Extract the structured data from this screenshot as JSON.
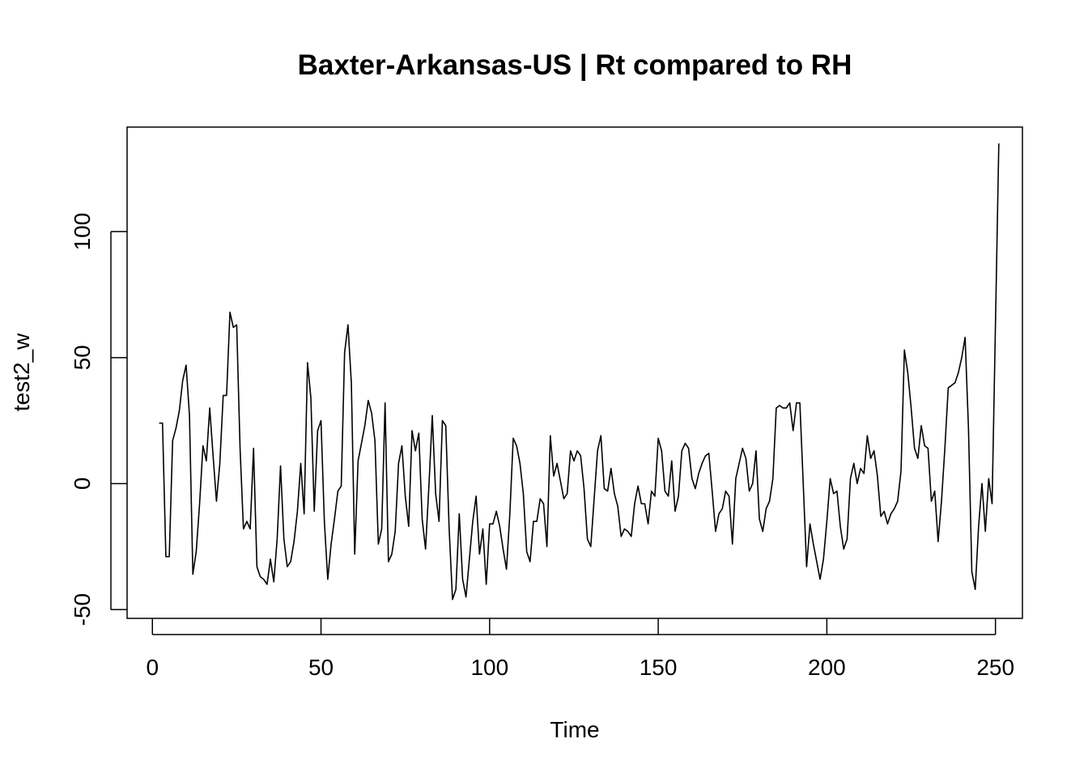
{
  "chart_data": {
    "type": "line",
    "title": "Baxter-Arkansas-US | Rt compared to RH",
    "xlabel": "Time",
    "ylabel": "test2_w",
    "xlim": [
      -7.5,
      258
    ],
    "ylim": [
      -53.5,
      141.5
    ],
    "x_ticks": [
      0,
      50,
      100,
      150,
      200,
      250
    ],
    "y_ticks": [
      -50,
      0,
      50,
      100
    ],
    "x_start": 2,
    "grid": false,
    "legend": "none",
    "series": [
      {
        "values": [
          24,
          24,
          -29,
          -29,
          17,
          22,
          29,
          41,
          47,
          27,
          -36,
          -27,
          -8,
          15,
          9,
          30,
          11,
          -7,
          8,
          35,
          35,
          68,
          62,
          63,
          14,
          -18,
          -15,
          -18,
          14,
          -33,
          -37,
          -38,
          -40,
          -30,
          -39,
          -22,
          7,
          -22,
          -33,
          -31,
          -23,
          -11,
          8,
          -12,
          48,
          34,
          -11,
          21,
          25,
          -15,
          -38,
          -24,
          -14,
          -3,
          -1,
          52,
          63,
          40,
          -28,
          9,
          16,
          23,
          33,
          28,
          17,
          -24,
          -18,
          32,
          -31,
          -28,
          -19,
          8,
          15,
          -5,
          -17,
          21,
          13,
          20,
          -14,
          -26,
          -1,
          27,
          -4,
          -15,
          25,
          23,
          -18,
          -46,
          -42,
          -12,
          -38,
          -45,
          -30,
          -15,
          -5,
          -28,
          -18,
          -40,
          -16,
          -16,
          -11,
          -17,
          -26,
          -34,
          -12,
          18,
          15,
          8,
          -4,
          -27,
          -31,
          -15,
          -15,
          -6,
          -8,
          -25,
          19,
          3,
          8,
          1,
          -6,
          -4,
          13,
          9,
          13,
          11,
          -2,
          -22,
          -25,
          -6,
          13,
          19,
          -2,
          -3,
          6,
          -4,
          -9,
          -21,
          -18,
          -19,
          -21,
          -8,
          -1,
          -8,
          -8,
          -16,
          -3,
          -5,
          18,
          13,
          -3,
          -5,
          9,
          -11,
          -5,
          13,
          16,
          14,
          2,
          -2,
          4,
          8,
          11,
          12,
          -3,
          -19,
          -12,
          -10,
          -3,
          -5,
          -24,
          2,
          8,
          14,
          10,
          -3,
          0,
          13,
          -14,
          -19,
          -10,
          -7,
          2,
          30,
          31,
          30,
          30,
          32,
          21,
          32,
          32,
          0,
          -33,
          -16,
          -24,
          -31,
          -38,
          -30,
          -15,
          2,
          -4,
          -3,
          -17,
          -26,
          -22,
          2,
          8,
          0,
          6,
          4,
          19,
          10,
          13,
          3,
          -13,
          -11,
          -16,
          -12,
          -10,
          -7,
          5,
          53,
          44,
          30,
          14,
          10,
          23,
          15,
          14,
          -7,
          -3,
          -23,
          -7,
          14,
          38,
          39,
          40,
          44,
          50,
          58,
          22,
          -35,
          -42,
          -17,
          0,
          -19,
          2,
          -8,
          63,
          135
        ]
      }
    ]
  }
}
